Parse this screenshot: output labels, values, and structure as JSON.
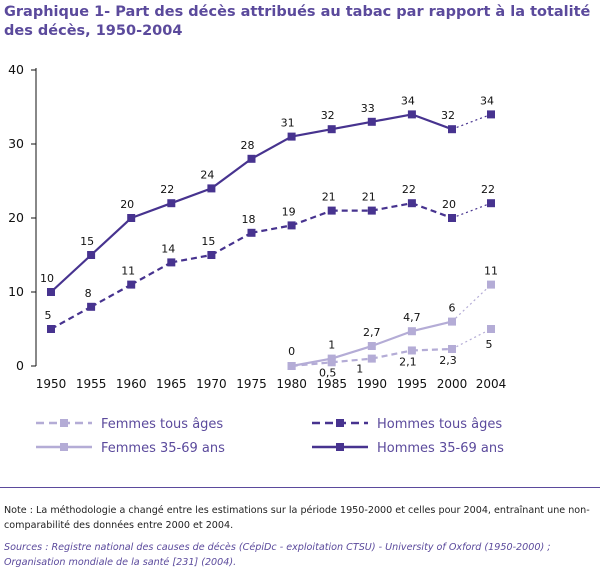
{
  "title": "Graphique 1- Part des décès attribués au tabac par rapport à la totalité des décès, 1950-2004",
  "note": "Note : La méthodologie a changé entre les estimations sur la période 1950-2000 et celles pour 2004, entraînant une non-comparabilité des données entre 2000 et 2004.",
  "sources": "Sources : Registre national des causes de décès (CépiDc - exploitation CTSU) - University of Oxford (1950-2000) ; Organisation mondiale de la santé [231] (2004).",
  "colors": {
    "dark": "#47338f",
    "light": "#b4acd6",
    "text": "#5b4a9c"
  },
  "chart_data": {
    "type": "line",
    "title": "Graphique 1- Part des décès attribués au tabac par rapport à la totalité des décès, 1950-2004",
    "x": [
      1950,
      1955,
      1960,
      1965,
      1970,
      1975,
      1980,
      1985,
      1990,
      1995,
      2000,
      2004
    ],
    "x_ticks": [
      "1950",
      "1955",
      "1960",
      "1965",
      "1970",
      "1975",
      "1980",
      "1985",
      "1990",
      "1995",
      "2000",
      "2004"
    ],
    "y_ticks": [
      "0",
      "10",
      "20",
      "30",
      "40"
    ],
    "ylim": [
      0,
      40
    ],
    "note": "Segment 2000-2004 drawn dotted (methodology change)",
    "legend_position": "bottom",
    "series": [
      {
        "name": "Hommes 35-69 ans",
        "color": "#47338f",
        "style": "solid",
        "x": [
          1950,
          1955,
          1960,
          1965,
          1970,
          1975,
          1980,
          1985,
          1990,
          1995,
          2000,
          2004
        ],
        "values": [
          10,
          15,
          20,
          22,
          24,
          28,
          31,
          32,
          33,
          34,
          32,
          34
        ],
        "labels": [
          "10",
          "15",
          "20",
          "22",
          "24",
          "28",
          "31",
          "32",
          "33",
          "34",
          "32",
          "34"
        ]
      },
      {
        "name": "Hommes tous âges",
        "color": "#47338f",
        "style": "dashed",
        "x": [
          1950,
          1955,
          1960,
          1965,
          1970,
          1975,
          1980,
          1985,
          1990,
          1995,
          2000,
          2004
        ],
        "values": [
          5,
          8,
          11,
          14,
          15,
          18,
          19,
          21,
          21,
          22,
          20,
          22
        ],
        "labels": [
          "5",
          "8",
          "11",
          "14",
          "15",
          "18",
          "19",
          "21",
          "21",
          "22",
          "20",
          "22"
        ]
      },
      {
        "name": "Femmes 35-69 ans",
        "color": "#b4acd6",
        "style": "solid",
        "x": [
          1980,
          1985,
          1990,
          1995,
          2000,
          2004
        ],
        "values": [
          0,
          1,
          2.7,
          4.7,
          6,
          11
        ],
        "labels": [
          "0",
          "1",
          "2,7",
          "4,7",
          "6",
          "11"
        ]
      },
      {
        "name": "Femmes tous âges",
        "color": "#b4acd6",
        "style": "dashed",
        "x": [
          1980,
          1985,
          1990,
          1995,
          2000,
          2004
        ],
        "values": [
          0,
          0.5,
          1,
          2.1,
          2.3,
          5
        ],
        "labels": [
          "",
          "0,5",
          "1",
          "2,1",
          "2,3",
          "5"
        ]
      }
    ],
    "legend": [
      {
        "label": "Femmes tous âges",
        "color": "#b4acd6",
        "style": "dashed"
      },
      {
        "label": "Hommes tous âges",
        "color": "#47338f",
        "style": "dashed"
      },
      {
        "label": "Femmes 35-69 ans",
        "color": "#b4acd6",
        "style": "solid"
      },
      {
        "label": "Hommes 35-69 ans",
        "color": "#47338f",
        "style": "solid"
      }
    ]
  }
}
